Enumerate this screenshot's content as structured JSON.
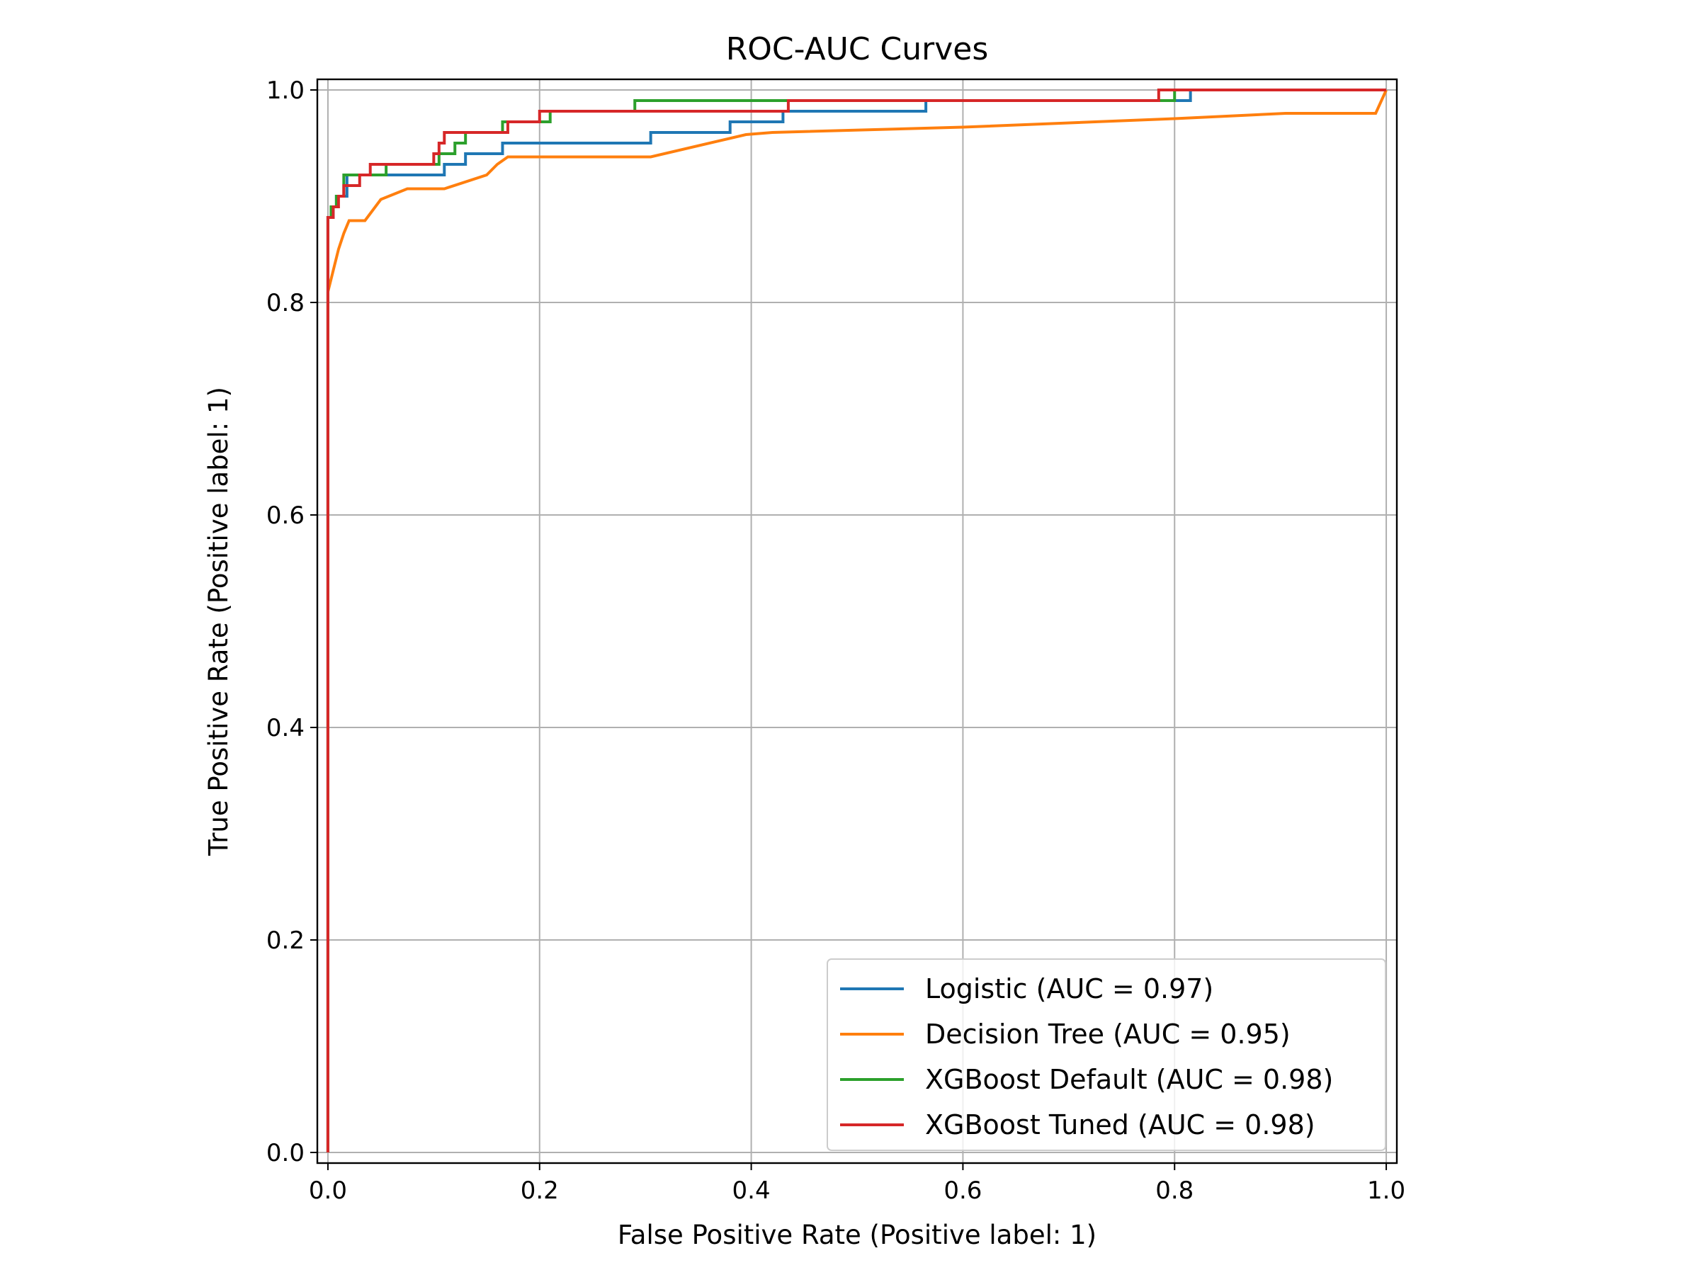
{
  "chart_data": {
    "type": "line",
    "title": "ROC-AUC Curves",
    "xlabel": "False Positive Rate (Positive label: 1)",
    "ylabel": "True Positive Rate (Positive label: 1)",
    "xlim": [
      -0.01,
      1.01
    ],
    "ylim": [
      -0.01,
      1.01
    ],
    "xticks": [
      0.0,
      0.2,
      0.4,
      0.6,
      0.8,
      1.0
    ],
    "yticks": [
      0.0,
      0.2,
      0.4,
      0.6,
      0.8,
      1.0
    ],
    "xtick_labels": [
      "0.0",
      "0.2",
      "0.4",
      "0.6",
      "0.8",
      "1.0"
    ],
    "ytick_labels": [
      "0.0",
      "0.2",
      "0.4",
      "0.6",
      "0.8",
      "1.0"
    ],
    "grid": true,
    "legend_position": "lower-right",
    "series": [
      {
        "name": "Logistic (AUC = 0.97)",
        "color": "#1f77b4",
        "points": [
          [
            0,
            0
          ],
          [
            0,
            0.88
          ],
          [
            0.005,
            0.88
          ],
          [
            0.005,
            0.89
          ],
          [
            0.008,
            0.89
          ],
          [
            0.008,
            0.9
          ],
          [
            0.018,
            0.9
          ],
          [
            0.018,
            0.92
          ],
          [
            0.11,
            0.92
          ],
          [
            0.11,
            0.93
          ],
          [
            0.13,
            0.93
          ],
          [
            0.13,
            0.94
          ],
          [
            0.165,
            0.94
          ],
          [
            0.165,
            0.95
          ],
          [
            0.305,
            0.95
          ],
          [
            0.305,
            0.96
          ],
          [
            0.38,
            0.96
          ],
          [
            0.38,
            0.97
          ],
          [
            0.43,
            0.97
          ],
          [
            0.43,
            0.98
          ],
          [
            0.565,
            0.98
          ],
          [
            0.565,
            0.99
          ],
          [
            0.815,
            0.99
          ],
          [
            0.815,
            1.0
          ],
          [
            1.0,
            1.0
          ]
        ]
      },
      {
        "name": "Decision Tree (AUC = 0.95)",
        "color": "#ff7f0e",
        "points": [
          [
            0,
            0
          ],
          [
            0,
            0.81
          ],
          [
            0.005,
            0.83
          ],
          [
            0.01,
            0.85
          ],
          [
            0.015,
            0.865
          ],
          [
            0.02,
            0.877
          ],
          [
            0.035,
            0.877
          ],
          [
            0.05,
            0.897
          ],
          [
            0.075,
            0.907
          ],
          [
            0.11,
            0.907
          ],
          [
            0.15,
            0.92
          ],
          [
            0.16,
            0.93
          ],
          [
            0.17,
            0.937
          ],
          [
            0.2,
            0.937
          ],
          [
            0.305,
            0.937
          ],
          [
            0.395,
            0.958
          ],
          [
            0.42,
            0.96
          ],
          [
            0.6,
            0.965
          ],
          [
            0.8,
            0.973
          ],
          [
            0.905,
            0.978
          ],
          [
            0.99,
            0.978
          ],
          [
            1.0,
            1.0
          ]
        ]
      },
      {
        "name": "XGBoost Default (AUC = 0.98)",
        "color": "#2ca02c",
        "points": [
          [
            0,
            0
          ],
          [
            0,
            0.88
          ],
          [
            0.003,
            0.88
          ],
          [
            0.003,
            0.89
          ],
          [
            0.008,
            0.89
          ],
          [
            0.008,
            0.9
          ],
          [
            0.015,
            0.9
          ],
          [
            0.015,
            0.92
          ],
          [
            0.055,
            0.92
          ],
          [
            0.055,
            0.93
          ],
          [
            0.105,
            0.93
          ],
          [
            0.105,
            0.94
          ],
          [
            0.12,
            0.94
          ],
          [
            0.12,
            0.95
          ],
          [
            0.13,
            0.95
          ],
          [
            0.13,
            0.96
          ],
          [
            0.165,
            0.96
          ],
          [
            0.165,
            0.97
          ],
          [
            0.21,
            0.97
          ],
          [
            0.21,
            0.98
          ],
          [
            0.29,
            0.98
          ],
          [
            0.29,
            0.99
          ],
          [
            0.8,
            0.99
          ],
          [
            0.8,
            1.0
          ],
          [
            1.0,
            1.0
          ]
        ]
      },
      {
        "name": "XGBoost Tuned (AUC = 0.98)",
        "color": "#d62728",
        "points": [
          [
            0,
            0
          ],
          [
            0,
            0.88
          ],
          [
            0.005,
            0.88
          ],
          [
            0.005,
            0.89
          ],
          [
            0.01,
            0.89
          ],
          [
            0.01,
            0.9
          ],
          [
            0.015,
            0.9
          ],
          [
            0.015,
            0.91
          ],
          [
            0.03,
            0.91
          ],
          [
            0.03,
            0.92
          ],
          [
            0.04,
            0.92
          ],
          [
            0.04,
            0.93
          ],
          [
            0.1,
            0.93
          ],
          [
            0.1,
            0.94
          ],
          [
            0.105,
            0.94
          ],
          [
            0.105,
            0.95
          ],
          [
            0.11,
            0.95
          ],
          [
            0.11,
            0.96
          ],
          [
            0.17,
            0.96
          ],
          [
            0.17,
            0.97
          ],
          [
            0.2,
            0.97
          ],
          [
            0.2,
            0.98
          ],
          [
            0.435,
            0.98
          ],
          [
            0.435,
            0.99
          ],
          [
            0.785,
            0.99
          ],
          [
            0.785,
            1.0
          ],
          [
            1.0,
            1.0
          ]
        ]
      }
    ]
  }
}
